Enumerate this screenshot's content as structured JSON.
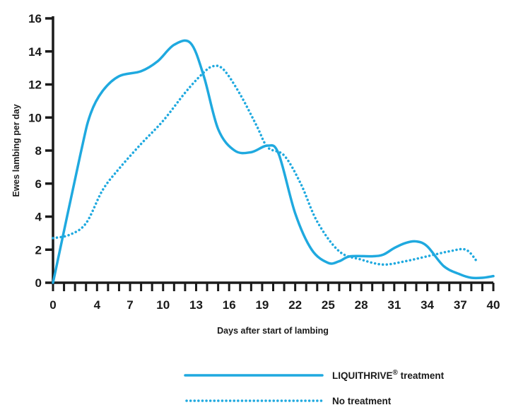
{
  "chart_data": {
    "type": "line",
    "title": "",
    "xlabel": "Days after start of lambing",
    "ylabel": "Ewes lambing per day",
    "xlim": [
      0,
      40
    ],
    "ylim": [
      0,
      16
    ],
    "x_ticks": [
      "0",
      "4",
      "7",
      "10",
      "13",
      "16",
      "19",
      "22",
      "25",
      "28",
      "31",
      "34",
      "37",
      "40"
    ],
    "x_tick_values": [
      0,
      4,
      7,
      10,
      13,
      16,
      19,
      22,
      25,
      28,
      31,
      34,
      37,
      40
    ],
    "y_ticks": [
      "0",
      "2",
      "4",
      "6",
      "8",
      "10",
      "12",
      "14",
      "16"
    ],
    "y_tick_values": [
      0,
      2,
      4,
      6,
      8,
      10,
      12,
      14,
      16
    ],
    "grid": false,
    "legend_position": "bottom-right",
    "series": [
      {
        "name": "LIQUITHRIVE",
        "name_suffix": "®",
        "name_rest": " treatment",
        "style": "solid",
        "color": "#1fa9df",
        "x": [
          0,
          2.5,
          3.4,
          4.5,
          6,
          8,
          9.5,
          11,
          12.5,
          13.7,
          15,
          16.5,
          18,
          19.5,
          20.5,
          22,
          23.5,
          25,
          26,
          27,
          29,
          30,
          31,
          32,
          33,
          34,
          35.5,
          37,
          38,
          39,
          40
        ],
        "y": [
          0,
          7.8,
          10.2,
          11.6,
          12.5,
          12.8,
          13.4,
          14.4,
          14.5,
          12.5,
          9.3,
          8.0,
          7.9,
          8.3,
          7.8,
          4.2,
          2.0,
          1.2,
          1.3,
          1.6,
          1.6,
          1.7,
          2.1,
          2.4,
          2.5,
          2.2,
          1.0,
          0.5,
          0.3,
          0.3,
          0.4
        ]
      },
      {
        "name": "No treatment",
        "style": "dotted",
        "color": "#1fa9df",
        "x": [
          0,
          1.5,
          3,
          4.5,
          6,
          8,
          10,
          12,
          13.5,
          14.5,
          15.5,
          17,
          18.5,
          19.5,
          21,
          22.5,
          24,
          26,
          28,
          30,
          32,
          34,
          36,
          37.5,
          38.5
        ],
        "y": [
          2.7,
          2.9,
          3.6,
          5.6,
          6.9,
          8.4,
          9.8,
          11.5,
          12.6,
          13.1,
          12.9,
          11.4,
          9.5,
          8.2,
          7.7,
          6.0,
          3.7,
          1.9,
          1.4,
          1.1,
          1.3,
          1.6,
          1.9,
          2.0,
          1.3
        ]
      }
    ]
  }
}
